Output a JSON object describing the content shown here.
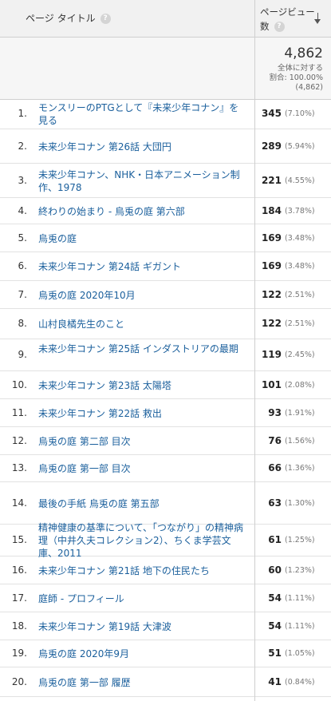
{
  "header": {
    "title_col": "ページ タイトル",
    "pv_line1": "ページビュー",
    "pv_line2": "数",
    "help_glyph": "?"
  },
  "total": {
    "value": "4,862",
    "line1": "全体に対する",
    "line2": "割合: 100.00%",
    "line3": "(4,862)"
  },
  "rows": [
    {
      "rank": "1.",
      "title": "モンスリーのPTGとして『未来少年コナン』を見る",
      "value": "345",
      "pct": "(7.10%)"
    },
    {
      "rank": "2.",
      "title": "未来少年コナン 第26話 大団円",
      "value": "289",
      "pct": "(5.94%)"
    },
    {
      "rank": "3.",
      "title": "未来少年コナン、NHK・日本アニメーション制作、1978",
      "value": "221",
      "pct": "(4.55%)"
    },
    {
      "rank": "4.",
      "title": "終わりの始まり - 烏兎の庭 第六部",
      "value": "184",
      "pct": "(3.78%)"
    },
    {
      "rank": "5.",
      "title": "烏兎の庭",
      "value": "169",
      "pct": "(3.48%)"
    },
    {
      "rank": "6.",
      "title": "未来少年コナン 第24話 ギガント",
      "value": "169",
      "pct": "(3.48%)"
    },
    {
      "rank": "7.",
      "title": "烏兎の庭 2020年10月",
      "value": "122",
      "pct": "(2.51%)"
    },
    {
      "rank": "8.",
      "title": "山村良橘先生のこと",
      "value": "122",
      "pct": "(2.51%)"
    },
    {
      "rank": "9.",
      "title": "未来少年コナン 第25話 インダストリアの最期",
      "value": "119",
      "pct": "(2.45%)"
    },
    {
      "rank": "10.",
      "title": "未来少年コナン 第23話 太陽塔",
      "value": "101",
      "pct": "(2.08%)"
    },
    {
      "rank": "11.",
      "title": "未来少年コナン 第22話 救出",
      "value": "93",
      "pct": "(1.91%)"
    },
    {
      "rank": "12.",
      "title": "烏兎の庭 第二部 目次",
      "value": "76",
      "pct": "(1.56%)"
    },
    {
      "rank": "13.",
      "title": "烏兎の庭 第一部 目次",
      "value": "66",
      "pct": "(1.36%)"
    },
    {
      "rank": "14.",
      "title": "最後の手紙 烏兎の庭 第五部",
      "value": "63",
      "pct": "(1.30%)"
    },
    {
      "rank": "15.",
      "title": "精神健康の基準について、「つながり」の精神病理（中井久夫コレクション2）、ちくま学芸文庫、2011",
      "value": "61",
      "pct": "(1.25%)"
    },
    {
      "rank": "16.",
      "title": "未来少年コナン 第21話 地下の住民たち",
      "value": "60",
      "pct": "(1.23%)"
    },
    {
      "rank": "17.",
      "title": "庭師 - プロフィール",
      "value": "54",
      "pct": "(1.11%)"
    },
    {
      "rank": "18.",
      "title": "未来少年コナン 第19話 大津波",
      "value": "54",
      "pct": "(1.11%)"
    },
    {
      "rank": "19.",
      "title": "烏兎の庭 2020年9月",
      "value": "51",
      "pct": "(1.05%)"
    },
    {
      "rank": "20.",
      "title": "烏兎の庭 第一部 履歴",
      "value": "41",
      "pct": "(0.84%)"
    }
  ]
}
